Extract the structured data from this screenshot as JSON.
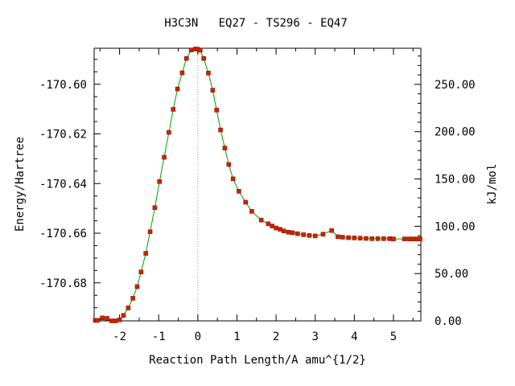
{
  "chart_data": {
    "type": "line",
    "title": "H3C3N   EQ27 - TS296 - EQ47",
    "xlabel": "Reaction Path Length/A amu^{1/2}",
    "ylabel": "Energy/Hartree",
    "y2label": "kJ/mol",
    "xlim": [
      -2.65,
      5.7
    ],
    "ylim": [
      -170.6953,
      -170.5855
    ],
    "x_ticks": [
      -2,
      -1,
      0,
      1,
      2,
      3,
      4,
      5
    ],
    "x_tick_labels": [
      "-2",
      "-1",
      "0",
      "1",
      "2",
      "3",
      "4",
      "5"
    ],
    "y_ticks": [
      -170.6,
      -170.62,
      -170.64,
      -170.66,
      -170.68
    ],
    "y_tick_labels": [
      "-170.60",
      "-170.62",
      "-170.64",
      "-170.66",
      "-170.68"
    ],
    "y2_ticks": [
      0,
      50,
      100,
      150,
      200,
      250
    ],
    "y2_tick_labels": [
      "0.00",
      "50.00",
      "100.00",
      "150.00",
      "200.00",
      "250.00"
    ],
    "y2_zero_hartree": -170.6953,
    "y2_hartree_per_kjmol": 0.000381,
    "ts_marker_x": 0,
    "grid": false,
    "colors": {
      "line": "#00a000",
      "marker": "#cc2200",
      "marker_edge": "#8a1a00",
      "ts_line": "#999999"
    },
    "series": [
      {
        "x": [
          -2.62,
          -2.57,
          -2.44,
          -2.32,
          -2.2,
          -2.1,
          -2.0,
          -1.9,
          -1.78,
          -1.66,
          -1.55,
          -1.45,
          -1.33,
          -1.22,
          -1.1,
          -0.98,
          -0.86,
          -0.74,
          -0.63,
          -0.52,
          -0.4,
          -0.29,
          -0.17,
          -0.06,
          0.0,
          0.06,
          0.15,
          0.27,
          0.38,
          0.48,
          0.58,
          0.69,
          0.79,
          0.9,
          1.05,
          1.22,
          1.38,
          1.62,
          1.8,
          1.9,
          2.0,
          2.1,
          2.2,
          2.32,
          2.42,
          2.55,
          2.7,
          2.85,
          3.0,
          3.2,
          3.42,
          3.58,
          3.7,
          3.85,
          4.0,
          4.15,
          4.3,
          4.45,
          4.6,
          4.75,
          4.9,
          5.0,
          5.28,
          5.4,
          5.5,
          5.6,
          5.68
        ],
        "values": [
          -170.6951,
          -170.6951,
          -170.6941,
          -170.6943,
          -170.6953,
          -170.6953,
          -170.6949,
          -170.6931,
          -170.6901,
          -170.6862,
          -170.6815,
          -170.6756,
          -170.6681,
          -170.6594,
          -170.6497,
          -170.6392,
          -170.6294,
          -170.6194,
          -170.6101,
          -170.6019,
          -170.5954,
          -170.5896,
          -170.5862,
          -170.5858,
          -170.5859,
          -170.5863,
          -170.5896,
          -170.5955,
          -170.6024,
          -170.6104,
          -170.6184,
          -170.6257,
          -170.6323,
          -170.6381,
          -170.6431,
          -170.6475,
          -170.6512,
          -170.6547,
          -170.6562,
          -170.6571,
          -170.6579,
          -170.6584,
          -170.6591,
          -170.6596,
          -170.6598,
          -170.6602,
          -170.6606,
          -170.6609,
          -170.6611,
          -170.6604,
          -170.6589,
          -170.6614,
          -170.6616,
          -170.6618,
          -170.6619,
          -170.662,
          -170.6621,
          -170.6622,
          -170.6622,
          -170.6622,
          -170.6622,
          -170.6623,
          -170.6623,
          -170.6623,
          -170.6623,
          -170.6623,
          -170.6623
        ]
      }
    ]
  }
}
